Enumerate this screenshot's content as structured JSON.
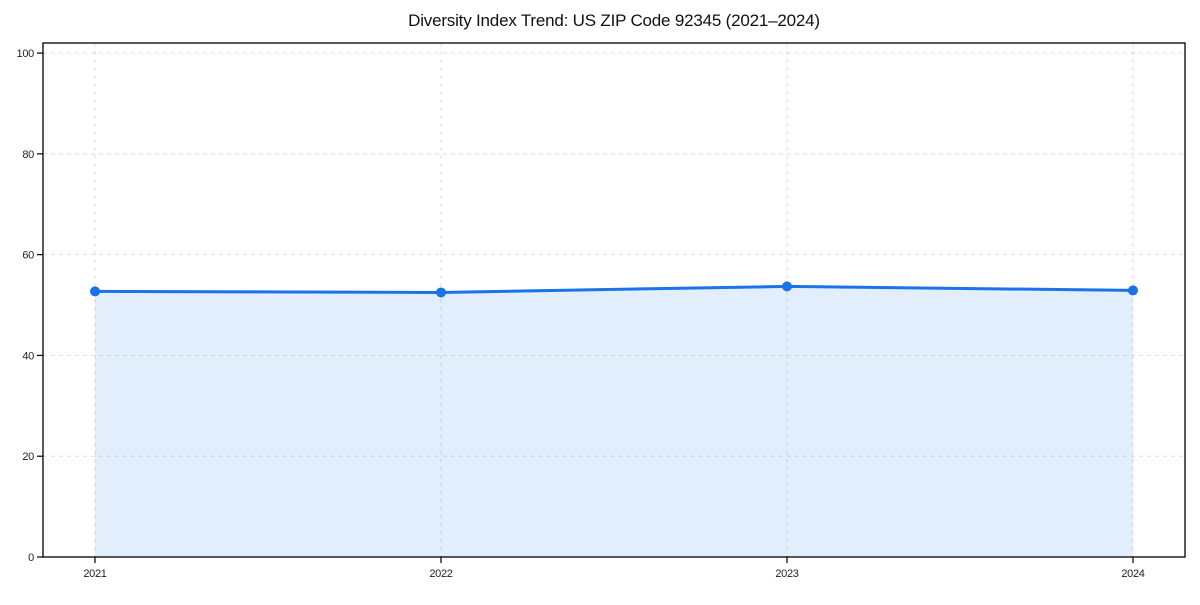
{
  "chart_data": {
    "type": "area",
    "title": "Diversity Index Trend: US ZIP Code 92345 (2021–2024)",
    "x_labels": [
      "2021",
      "2022",
      "2023",
      "2024"
    ],
    "values": [
      52.7,
      52.5,
      53.7,
      52.9
    ],
    "xlabel": "",
    "ylabel": "",
    "ylim": [
      0,
      102
    ],
    "yticks": [
      0,
      20,
      40,
      60,
      80,
      100
    ],
    "grid": true,
    "grid_style": "dashed",
    "legend": false,
    "marker": "circle",
    "colors": {
      "line": "#1a73e8",
      "fill": "rgba(26,115,232,0.12)",
      "grid": "#dddddd",
      "axis": "#000000",
      "tick_label": "#222222",
      "title": "#111111",
      "background": "#ffffff"
    }
  }
}
